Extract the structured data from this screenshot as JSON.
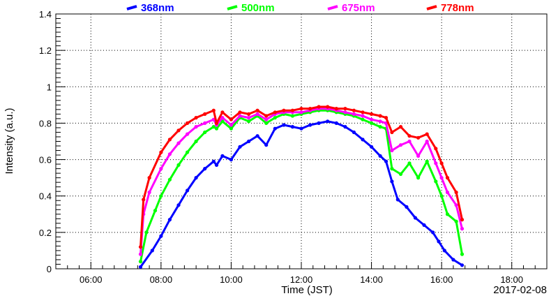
{
  "chart_data": {
    "type": "scatter",
    "xlabel": "Time (JST)",
    "ylabel": "Intensity (a.u.)",
    "date": "2017-02-08",
    "xlim": [
      "05:00",
      "19:00"
    ],
    "ylim": [
      0,
      1.4
    ],
    "grid": true,
    "legend_placement": "top",
    "x_ticks": [
      "06:00",
      "08:00",
      "10:00",
      "12:00",
      "14:00",
      "16:00",
      "18:00"
    ],
    "y_ticks": [
      "0",
      "0.2",
      "0.4",
      "0.6",
      "0.8",
      "1",
      "1.2",
      "1.4"
    ],
    "series": [
      {
        "name": "368nm",
        "color": "#0000ff",
        "points": [
          [
            "07:25",
            0.01
          ],
          [
            "07:45",
            0.1
          ],
          [
            "08:00",
            0.18
          ],
          [
            "08:15",
            0.27
          ],
          [
            "08:30",
            0.35
          ],
          [
            "08:45",
            0.43
          ],
          [
            "09:00",
            0.5
          ],
          [
            "09:15",
            0.55
          ],
          [
            "09:30",
            0.59
          ],
          [
            "09:35",
            0.57
          ],
          [
            "09:45",
            0.62
          ],
          [
            "10:00",
            0.6
          ],
          [
            "10:15",
            0.67
          ],
          [
            "10:30",
            0.7
          ],
          [
            "10:45",
            0.73
          ],
          [
            "11:00",
            0.68
          ],
          [
            "11:15",
            0.77
          ],
          [
            "11:30",
            0.79
          ],
          [
            "11:45",
            0.78
          ],
          [
            "12:00",
            0.77
          ],
          [
            "12:15",
            0.79
          ],
          [
            "12:30",
            0.8
          ],
          [
            "12:45",
            0.81
          ],
          [
            "13:00",
            0.8
          ],
          [
            "13:15",
            0.78
          ],
          [
            "13:30",
            0.75
          ],
          [
            "13:45",
            0.71
          ],
          [
            "14:00",
            0.67
          ],
          [
            "14:15",
            0.62
          ],
          [
            "14:25",
            0.59
          ],
          [
            "14:35",
            0.48
          ],
          [
            "14:45",
            0.38
          ],
          [
            "15:00",
            0.34
          ],
          [
            "15:15",
            0.28
          ],
          [
            "15:30",
            0.24
          ],
          [
            "15:45",
            0.2
          ],
          [
            "15:55",
            0.15
          ],
          [
            "16:05",
            0.1
          ],
          [
            "16:20",
            0.05
          ],
          [
            "16:35",
            0.02
          ]
        ]
      },
      {
        "name": "500nm",
        "color": "#00ff00",
        "points": [
          [
            "07:25",
            0.04
          ],
          [
            "07:35",
            0.2
          ],
          [
            "07:50",
            0.32
          ],
          [
            "08:00",
            0.4
          ],
          [
            "08:15",
            0.49
          ],
          [
            "08:30",
            0.57
          ],
          [
            "08:45",
            0.64
          ],
          [
            "09:00",
            0.7
          ],
          [
            "09:15",
            0.75
          ],
          [
            "09:30",
            0.78
          ],
          [
            "09:35",
            0.77
          ],
          [
            "09:45",
            0.81
          ],
          [
            "10:00",
            0.77
          ],
          [
            "10:15",
            0.83
          ],
          [
            "10:30",
            0.81
          ],
          [
            "10:45",
            0.84
          ],
          [
            "11:00",
            0.8
          ],
          [
            "11:15",
            0.83
          ],
          [
            "11:30",
            0.85
          ],
          [
            "11:45",
            0.84
          ],
          [
            "12:00",
            0.85
          ],
          [
            "12:15",
            0.86
          ],
          [
            "12:30",
            0.87
          ],
          [
            "12:45",
            0.87
          ],
          [
            "13:00",
            0.86
          ],
          [
            "13:15",
            0.85
          ],
          [
            "13:30",
            0.84
          ],
          [
            "13:45",
            0.82
          ],
          [
            "14:00",
            0.8
          ],
          [
            "14:15",
            0.78
          ],
          [
            "14:25",
            0.77
          ],
          [
            "14:35",
            0.55
          ],
          [
            "14:50",
            0.52
          ],
          [
            "15:05",
            0.58
          ],
          [
            "15:20",
            0.5
          ],
          [
            "15:35",
            0.59
          ],
          [
            "15:50",
            0.48
          ],
          [
            "16:00",
            0.4
          ],
          [
            "16:10",
            0.3
          ],
          [
            "16:25",
            0.26
          ],
          [
            "16:35",
            0.08
          ]
        ]
      },
      {
        "name": "675nm",
        "color": "#ff00ff",
        "points": [
          [
            "07:25",
            0.08
          ],
          [
            "07:30",
            0.3
          ],
          [
            "07:40",
            0.42
          ],
          [
            "08:00",
            0.55
          ],
          [
            "08:15",
            0.63
          ],
          [
            "08:30",
            0.69
          ],
          [
            "08:45",
            0.74
          ],
          [
            "09:00",
            0.78
          ],
          [
            "09:15",
            0.8
          ],
          [
            "09:30",
            0.82
          ],
          [
            "09:35",
            0.79
          ],
          [
            "09:45",
            0.83
          ],
          [
            "10:00",
            0.79
          ],
          [
            "10:15",
            0.84
          ],
          [
            "10:30",
            0.83
          ],
          [
            "10:45",
            0.85
          ],
          [
            "11:00",
            0.82
          ],
          [
            "11:15",
            0.85
          ],
          [
            "11:30",
            0.86
          ],
          [
            "11:45",
            0.86
          ],
          [
            "12:00",
            0.86
          ],
          [
            "12:15",
            0.87
          ],
          [
            "12:30",
            0.88
          ],
          [
            "12:45",
            0.88
          ],
          [
            "13:00",
            0.87
          ],
          [
            "13:15",
            0.86
          ],
          [
            "13:30",
            0.85
          ],
          [
            "13:45",
            0.84
          ],
          [
            "14:00",
            0.82
          ],
          [
            "14:15",
            0.81
          ],
          [
            "14:25",
            0.8
          ],
          [
            "14:35",
            0.65
          ],
          [
            "14:50",
            0.68
          ],
          [
            "15:05",
            0.7
          ],
          [
            "15:20",
            0.62
          ],
          [
            "15:35",
            0.7
          ],
          [
            "15:50",
            0.58
          ],
          [
            "16:00",
            0.5
          ],
          [
            "16:10",
            0.42
          ],
          [
            "16:25",
            0.35
          ],
          [
            "16:35",
            0.22
          ]
        ]
      },
      {
        "name": "778nm",
        "color": "#ff0000",
        "points": [
          [
            "07:25",
            0.12
          ],
          [
            "07:30",
            0.38
          ],
          [
            "07:40",
            0.5
          ],
          [
            "08:00",
            0.64
          ],
          [
            "08:15",
            0.71
          ],
          [
            "08:30",
            0.76
          ],
          [
            "08:45",
            0.8
          ],
          [
            "09:00",
            0.83
          ],
          [
            "09:15",
            0.85
          ],
          [
            "09:30",
            0.87
          ],
          [
            "09:35",
            0.8
          ],
          [
            "09:45",
            0.86
          ],
          [
            "10:00",
            0.82
          ],
          [
            "10:15",
            0.86
          ],
          [
            "10:30",
            0.85
          ],
          [
            "10:45",
            0.87
          ],
          [
            "11:00",
            0.84
          ],
          [
            "11:15",
            0.86
          ],
          [
            "11:30",
            0.87
          ],
          [
            "11:45",
            0.87
          ],
          [
            "12:00",
            0.88
          ],
          [
            "12:15",
            0.88
          ],
          [
            "12:30",
            0.89
          ],
          [
            "12:45",
            0.89
          ],
          [
            "13:00",
            0.88
          ],
          [
            "13:15",
            0.88
          ],
          [
            "13:30",
            0.87
          ],
          [
            "13:45",
            0.86
          ],
          [
            "14:00",
            0.85
          ],
          [
            "14:15",
            0.84
          ],
          [
            "14:25",
            0.83
          ],
          [
            "14:35",
            0.75
          ],
          [
            "14:50",
            0.78
          ],
          [
            "15:05",
            0.73
          ],
          [
            "15:20",
            0.72
          ],
          [
            "15:35",
            0.74
          ],
          [
            "15:50",
            0.66
          ],
          [
            "16:00",
            0.58
          ],
          [
            "16:10",
            0.5
          ],
          [
            "16:25",
            0.42
          ],
          [
            "16:35",
            0.27
          ]
        ]
      }
    ]
  }
}
